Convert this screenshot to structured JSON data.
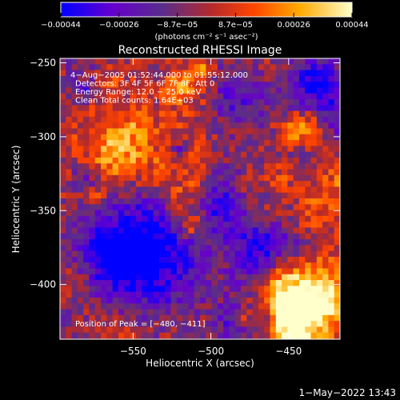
{
  "chart_data": {
    "type": "heatmap",
    "title": "Reconstructed RHESSI Image",
    "xlabel": "Heliocentric X (arcsec)",
    "ylabel": "Heliocentric Y (arcsec)",
    "xlim": [
      -597,
      -417
    ],
    "ylim": [
      -437,
      -247
    ],
    "x_ticks": [
      -550,
      -500,
      -450
    ],
    "x_tick_labels": [
      "−550",
      "−500",
      "−450"
    ],
    "y_ticks": [
      -250,
      -300,
      -350,
      -400
    ],
    "y_tick_labels": [
      "−250",
      "−300",
      "−350",
      "−400"
    ],
    "colorbar": {
      "min": -0.00044,
      "max": 0.00044,
      "tick_labels": [
        "−0.00044",
        "−0.00026",
        "−8.7e−05",
        "8.7e−05",
        "0.00026",
        "0.00044"
      ],
      "units_label": "(photons cm⁻² s⁻¹ asec⁻²)",
      "colors": [
        "#0000ff",
        "#6600cc",
        "#5a2d8a",
        "#b52a2a",
        "#ff4400",
        "#ffaa00",
        "#ffffcc"
      ]
    },
    "annotations": [
      "4−Aug−2005 01:52:44.000 to 01:55:12.000",
      "Detectors: 3F 4F 5F 6F 7F 8F, Att 0",
      "Energy Range: 12.0 − 25.0 keV",
      "Clean     Total counts: 1.64E+03"
    ],
    "peak_label": "Position of Peak = [−480, −411]",
    "peak_position": [
      -480,
      -411
    ],
    "grid": false
  },
  "footer": {
    "date": "1−May−2022 13:43"
  }
}
